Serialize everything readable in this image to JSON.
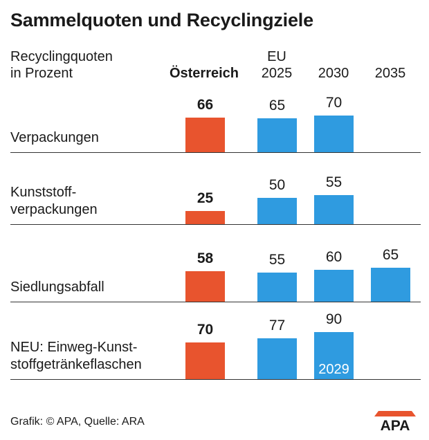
{
  "title": "Sammelquoten und Recyclingziele",
  "header": {
    "left_line1": "Recyclingquoten",
    "left_line2": "in Prozent",
    "austria": "Österreich",
    "eu": "EU",
    "y2025": "2025",
    "y2030": "2030",
    "y2035": "2035"
  },
  "colors": {
    "austria": "#e8542e",
    "eu_target": "#2f9be0"
  },
  "chart_data": {
    "type": "bar",
    "title": "Sammelquoten und Recyclingziele",
    "subtitle": "Recyclingquoten in Prozent",
    "columns": [
      "Österreich",
      "EU 2025",
      "2030",
      "2035"
    ],
    "rows": [
      {
        "label": [
          "Verpackungen"
        ],
        "values": [
          66,
          65,
          70,
          null
        ]
      },
      {
        "label": [
          "Kunststoff-",
          "verpackungen"
        ],
        "values": [
          25,
          50,
          55,
          null
        ]
      },
      {
        "label": [
          "Siedlungsabfall"
        ],
        "values": [
          58,
          55,
          60,
          65
        ]
      },
      {
        "label": [
          "NEU: Einweg-Kunst-",
          "stoffgetränkeflaschen"
        ],
        "values": [
          70,
          77,
          90,
          null
        ],
        "note_2030": "2029"
      }
    ]
  },
  "footer": {
    "source": "Grafik: © APA, Quelle: ARA",
    "logo_text": "APA"
  }
}
